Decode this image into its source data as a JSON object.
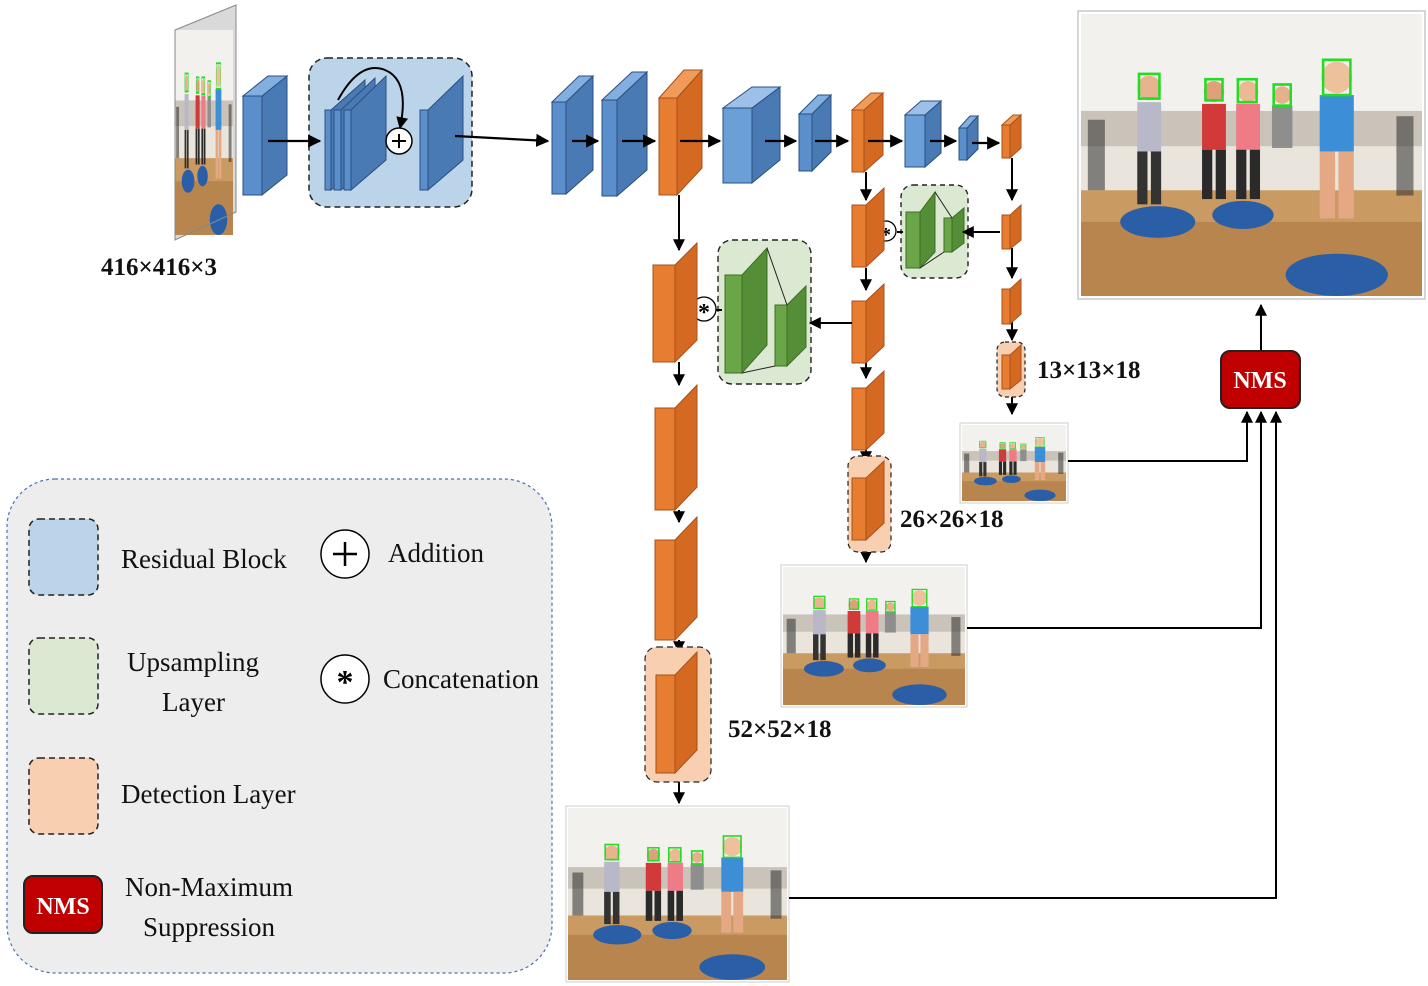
{
  "input_size": "416×416×3",
  "output_sizes": {
    "large": "13×13×18",
    "medium": "26×26×18",
    "small": "52×52×18"
  },
  "nms_label": "NMS",
  "legend": {
    "residual_block": "Residual Block",
    "addition": "Addition",
    "upsampling_line1": "Upsampling",
    "upsampling_line2": "Layer",
    "concatenation": "Concatenation",
    "detection_layer": "Detection Layer",
    "nms_badge": "NMS",
    "nms_line1": "Non-Maximum",
    "nms_line2": "Suppression",
    "plus_symbol": "+",
    "star_symbol": "*"
  },
  "colors": {
    "residual_fill": "#bcd4ea",
    "residual_box": "#5b8fcb",
    "upsample_fill": "#dbe9d2",
    "upsample_box": "#6aa548",
    "detect_fill": "#f8cfb1",
    "detect_box": "#e2772f",
    "nms": "#c00000",
    "legend_bg": "#ededed"
  },
  "icons": {
    "photo": "gym-class-photo",
    "face_box": "green-face-bounding-box"
  }
}
